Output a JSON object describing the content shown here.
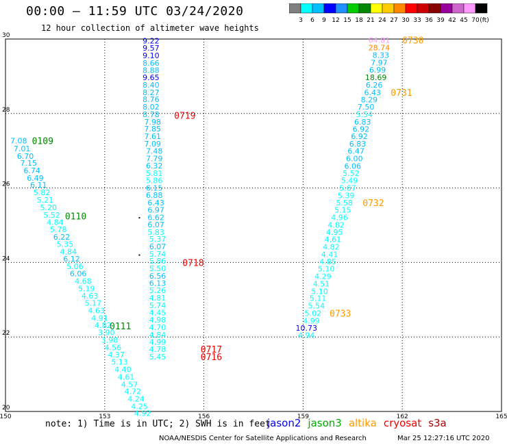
{
  "header": {
    "title": "00:00 – 11:59 UTC 03/24/2020",
    "subtitle": "12 hour collection of altimeter wave heights"
  },
  "colorbar": {
    "colors": [
      "#808080",
      "#00ffff",
      "#00bfff",
      "#0000ff",
      "#1e90ff",
      "#00cc00",
      "#008800",
      "#ffff00",
      "#ffcc00",
      "#ff8800",
      "#ff0000",
      "#cc0000",
      "#880000",
      "#990099",
      "#cc66cc",
      "#ff99ff",
      "#000000"
    ],
    "labels": [
      "3",
      "6",
      "9",
      "12",
      "15",
      "18",
      "21",
      "24",
      "27",
      "30",
      "33",
      "36",
      "39",
      "42",
      "45",
      "70",
      "(ft)"
    ]
  },
  "footer": {
    "note": "note: 1) Time is in UTC; 2) SWH is in feet",
    "satellites": [
      {
        "name": "jason2",
        "color": "#0000ee"
      },
      {
        "name": "jason3",
        "color": "#00aa00"
      },
      {
        "name": "altika",
        "color": "#ff9900"
      },
      {
        "name": "cryosat",
        "color": "#ee0000"
      },
      {
        "name": "s3a",
        "color": "#aa0000"
      }
    ],
    "credit": "NOAA/NESDIS Center for Satellite Applications and Research",
    "timestamp": "Mar 25 12:27:16 UTC 2020"
  },
  "chart_data": {
    "type": "scatter",
    "xlim": [
      150,
      165
    ],
    "ylim": [
      20,
      30
    ],
    "xticks": [
      "150",
      "153",
      "156",
      "159",
      "162",
      "165"
    ],
    "yticks": [
      "20",
      "22",
      "24",
      "26",
      "28",
      "30"
    ],
    "grid": true,
    "tracks": [
      {
        "satellite": "jason3",
        "points": [
          {
            "lon": 150.4,
            "lat": 27.27,
            "v": "7.08",
            "c": "#00bfff"
          },
          {
            "lon": 150.5,
            "lat": 27.06,
            "v": "7.01",
            "c": "#00bfff"
          },
          {
            "lon": 150.6,
            "lat": 26.86,
            "v": "6.70",
            "c": "#00bfff"
          },
          {
            "lon": 150.7,
            "lat": 26.67,
            "v": "7.15",
            "c": "#00bfff"
          },
          {
            "lon": 150.8,
            "lat": 26.47,
            "v": "6.74",
            "c": "#00bfff"
          },
          {
            "lon": 150.9,
            "lat": 26.27,
            "v": "6.49",
            "c": "#00bfff"
          },
          {
            "lon": 151.0,
            "lat": 26.08,
            "v": "6.11",
            "c": "#00bfff"
          },
          {
            "lon": 151.1,
            "lat": 25.88,
            "v": "5.82",
            "c": "#00ffff"
          },
          {
            "lon": 151.2,
            "lat": 25.68,
            "v": "5.21",
            "c": "#00ffff"
          },
          {
            "lon": 151.3,
            "lat": 25.48,
            "v": "5.20",
            "c": "#00ffff"
          },
          {
            "lon": 151.4,
            "lat": 25.28,
            "v": "5.52",
            "c": "#00ffff"
          },
          {
            "lon": 151.5,
            "lat": 25.08,
            "v": "4.84",
            "c": "#00ffff"
          },
          {
            "lon": 151.6,
            "lat": 24.89,
            "v": "5.78",
            "c": "#00ffff"
          },
          {
            "lon": 151.7,
            "lat": 24.69,
            "v": "6.22",
            "c": "#00bfff"
          },
          {
            "lon": 151.8,
            "lat": 24.49,
            "v": "5.35",
            "c": "#00ffff"
          },
          {
            "lon": 151.9,
            "lat": 24.29,
            "v": "4.84",
            "c": "#00ffff"
          },
          {
            "lon": 152.0,
            "lat": 24.1,
            "v": "6.12",
            "c": "#00bfff"
          },
          {
            "lon": 152.1,
            "lat": 23.9,
            "v": "5.06",
            "c": "#00ffff"
          },
          {
            "lon": 152.2,
            "lat": 23.7,
            "v": "6.06",
            "c": "#00bfff"
          },
          {
            "lon": 152.35,
            "lat": 23.5,
            "v": "4.68",
            "c": "#00ffff"
          },
          {
            "lon": 152.45,
            "lat": 23.3,
            "v": "5.19",
            "c": "#00ffff"
          },
          {
            "lon": 152.55,
            "lat": 23.11,
            "v": "4.63",
            "c": "#00ffff"
          },
          {
            "lon": 152.65,
            "lat": 22.91,
            "v": "5.17",
            "c": "#00ffff"
          },
          {
            "lon": 152.75,
            "lat": 22.71,
            "v": "4.63",
            "c": "#00ffff"
          },
          {
            "lon": 152.85,
            "lat": 22.51,
            "v": "4.91",
            "c": "#00ffff"
          },
          {
            "lon": 152.95,
            "lat": 22.32,
            "v": "4.82",
            "c": "#00ffff"
          },
          {
            "lon": 153.05,
            "lat": 22.12,
            "v": "3.90",
            "c": "#00ffff"
          },
          {
            "lon": 153.15,
            "lat": 21.92,
            "v": "3.98",
            "c": "#00ffff"
          },
          {
            "lon": 153.25,
            "lat": 21.72,
            "v": "4.56",
            "c": "#00ffff"
          },
          {
            "lon": 153.35,
            "lat": 21.53,
            "v": "4.37",
            "c": "#00ffff"
          },
          {
            "lon": 153.45,
            "lat": 21.33,
            "v": "5.13",
            "c": "#00ffff"
          },
          {
            "lon": 153.55,
            "lat": 21.13,
            "v": "4.40",
            "c": "#00ffff"
          },
          {
            "lon": 153.65,
            "lat": 20.93,
            "v": "4.61",
            "c": "#00ffff"
          },
          {
            "lon": 153.75,
            "lat": 20.73,
            "v": "4.57",
            "c": "#00ffff"
          },
          {
            "lon": 153.85,
            "lat": 20.54,
            "v": "4.72",
            "c": "#00ffff"
          },
          {
            "lon": 153.95,
            "lat": 20.34,
            "v": "4.24",
            "c": "#00ffff"
          },
          {
            "lon": 154.05,
            "lat": 20.14,
            "v": "4.25",
            "c": "#00ffff"
          },
          {
            "lon": 154.15,
            "lat": 19.95,
            "v": "4.92",
            "c": "#00ffff"
          }
        ]
      },
      {
        "satellite": "jason2",
        "points": [
          {
            "lon": 154.4,
            "lat": 29.95,
            "v": "9.22",
            "c": "#0000ff"
          },
          {
            "lon": 154.4,
            "lat": 29.76,
            "v": "9.57",
            "c": "#0000ff"
          },
          {
            "lon": 154.4,
            "lat": 29.56,
            "v": "9.10",
            "c": "#0000ff"
          },
          {
            "lon": 154.4,
            "lat": 29.36,
            "v": "8.66",
            "c": "#00bfff"
          },
          {
            "lon": 154.4,
            "lat": 29.16,
            "v": "8.88",
            "c": "#00bfff"
          },
          {
            "lon": 154.4,
            "lat": 28.97,
            "v": "9.65",
            "c": "#0000ff"
          },
          {
            "lon": 154.4,
            "lat": 28.77,
            "v": "8.40",
            "c": "#00bfff"
          },
          {
            "lon": 154.4,
            "lat": 28.57,
            "v": "8.27",
            "c": "#00bfff"
          },
          {
            "lon": 154.4,
            "lat": 28.38,
            "v": "8.76",
            "c": "#00bfff"
          },
          {
            "lon": 154.4,
            "lat": 28.18,
            "v": "8.02",
            "c": "#00bfff"
          },
          {
            "lon": 154.4,
            "lat": 27.98,
            "v": "8.78",
            "c": "#00bfff"
          },
          {
            "lon": 154.45,
            "lat": 27.78,
            "v": "7.98",
            "c": "#00bfff"
          },
          {
            "lon": 154.45,
            "lat": 27.59,
            "v": "7.85",
            "c": "#00bfff"
          },
          {
            "lon": 154.45,
            "lat": 27.39,
            "v": "7.61",
            "c": "#00bfff"
          },
          {
            "lon": 154.45,
            "lat": 27.19,
            "v": "7.09",
            "c": "#00bfff"
          },
          {
            "lon": 154.5,
            "lat": 26.99,
            "v": "7.48",
            "c": "#00bfff"
          },
          {
            "lon": 154.5,
            "lat": 26.79,
            "v": "7.79",
            "c": "#00bfff"
          },
          {
            "lon": 154.5,
            "lat": 26.6,
            "v": "6.32",
            "c": "#00bfff"
          },
          {
            "lon": 154.5,
            "lat": 26.4,
            "v": "5.81",
            "c": "#00ffff"
          },
          {
            "lon": 154.5,
            "lat": 26.2,
            "v": "5.86",
            "c": "#00ffff"
          },
          {
            "lon": 154.5,
            "lat": 26.0,
            "v": "6.15",
            "c": "#00bfff"
          },
          {
            "lon": 154.5,
            "lat": 25.81,
            "v": "6.88",
            "c": "#00bfff"
          },
          {
            "lon": 154.55,
            "lat": 25.61,
            "v": "6.43",
            "c": "#00bfff"
          },
          {
            "lon": 154.55,
            "lat": 25.41,
            "v": "6.97",
            "c": "#00bfff"
          },
          {
            "lon": 154.55,
            "lat": 25.21,
            "v": "6.62",
            "c": "#00bfff"
          },
          {
            "lon": 154.55,
            "lat": 25.02,
            "v": "6.07",
            "c": "#00bfff"
          },
          {
            "lon": 154.55,
            "lat": 24.82,
            "v": "5.83",
            "c": "#00ffff"
          },
          {
            "lon": 154.6,
            "lat": 24.63,
            "v": "5.37",
            "c": "#00ffff"
          },
          {
            "lon": 154.6,
            "lat": 24.43,
            "v": "6.07",
            "c": "#00bfff"
          },
          {
            "lon": 154.6,
            "lat": 24.23,
            "v": "5.74",
            "c": "#00ffff"
          },
          {
            "lon": 154.6,
            "lat": 24.04,
            "v": "5.86",
            "c": "#00ffff"
          },
          {
            "lon": 154.6,
            "lat": 23.84,
            "v": "5.50",
            "c": "#00ffff"
          },
          {
            "lon": 154.6,
            "lat": 23.64,
            "v": "6.56",
            "c": "#00bfff"
          },
          {
            "lon": 154.6,
            "lat": 23.45,
            "v": "6.13",
            "c": "#00bfff"
          },
          {
            "lon": 154.6,
            "lat": 23.25,
            "v": "5.26",
            "c": "#00ffff"
          },
          {
            "lon": 154.6,
            "lat": 23.05,
            "v": "4.81",
            "c": "#00ffff"
          },
          {
            "lon": 154.6,
            "lat": 22.85,
            "v": "5.74",
            "c": "#00ffff"
          },
          {
            "lon": 154.6,
            "lat": 22.66,
            "v": "4.45",
            "c": "#00ffff"
          },
          {
            "lon": 154.6,
            "lat": 22.46,
            "v": "4.98",
            "c": "#00ffff"
          },
          {
            "lon": 154.6,
            "lat": 22.26,
            "v": "4.70",
            "c": "#00ffff"
          },
          {
            "lon": 154.6,
            "lat": 22.06,
            "v": "4.84",
            "c": "#00ffff"
          },
          {
            "lon": 154.6,
            "lat": 21.87,
            "v": "4.99",
            "c": "#00ffff"
          },
          {
            "lon": 154.6,
            "lat": 21.67,
            "v": "4.78",
            "c": "#00ffff"
          },
          {
            "lon": 154.6,
            "lat": 21.47,
            "v": "5.45",
            "c": "#00ffff"
          }
        ]
      },
      {
        "satellite": "altika",
        "points": [
          {
            "lon": 161.3,
            "lat": 29.97,
            "v": "64.81",
            "c": "#ff99ff"
          },
          {
            "lon": 161.3,
            "lat": 29.77,
            "v": "28.74",
            "c": "#ff8800"
          },
          {
            "lon": 161.35,
            "lat": 29.57,
            "v": "8.33",
            "c": "#00bfff"
          },
          {
            "lon": 161.3,
            "lat": 29.37,
            "v": "7.97",
            "c": "#00bfff"
          },
          {
            "lon": 161.25,
            "lat": 29.17,
            "v": "6.99",
            "c": "#00bfff"
          },
          {
            "lon": 161.2,
            "lat": 28.97,
            "v": "18.69",
            "c": "#008800"
          },
          {
            "lon": 161.15,
            "lat": 28.77,
            "v": "6.26",
            "c": "#00bfff"
          },
          {
            "lon": 161.1,
            "lat": 28.57,
            "v": "6.43",
            "c": "#00bfff"
          },
          {
            "lon": 161.0,
            "lat": 28.37,
            "v": "8.29",
            "c": "#00bfff"
          },
          {
            "lon": 160.9,
            "lat": 28.18,
            "v": "7.50",
            "c": "#00bfff"
          },
          {
            "lon": 160.85,
            "lat": 27.98,
            "v": "5.54",
            "c": "#00ffff"
          },
          {
            "lon": 160.8,
            "lat": 27.78,
            "v": "6.83",
            "c": "#00bfff"
          },
          {
            "lon": 160.75,
            "lat": 27.58,
            "v": "6.92",
            "c": "#00bfff"
          },
          {
            "lon": 160.7,
            "lat": 27.39,
            "v": "6.92",
            "c": "#00bfff"
          },
          {
            "lon": 160.65,
            "lat": 27.19,
            "v": "6.83",
            "c": "#00bfff"
          },
          {
            "lon": 160.6,
            "lat": 26.99,
            "v": "6.47",
            "c": "#00bfff"
          },
          {
            "lon": 160.55,
            "lat": 26.79,
            "v": "6.00",
            "c": "#00bfff"
          },
          {
            "lon": 160.5,
            "lat": 26.59,
            "v": "6.06",
            "c": "#00bfff"
          },
          {
            "lon": 160.45,
            "lat": 26.4,
            "v": "5.52",
            "c": "#00ffff"
          },
          {
            "lon": 160.4,
            "lat": 26.2,
            "v": "5.49",
            "c": "#00ffff"
          },
          {
            "lon": 160.35,
            "lat": 26.0,
            "v": "5.67",
            "c": "#00ffff"
          },
          {
            "lon": 160.3,
            "lat": 25.8,
            "v": "5.39",
            "c": "#00ffff"
          },
          {
            "lon": 160.25,
            "lat": 25.61,
            "v": "5.58",
            "c": "#00ffff"
          },
          {
            "lon": 160.2,
            "lat": 25.41,
            "v": "5.15",
            "c": "#00ffff"
          },
          {
            "lon": 160.1,
            "lat": 25.21,
            "v": "4.96",
            "c": "#00ffff"
          },
          {
            "lon": 160.0,
            "lat": 25.01,
            "v": "4.82",
            "c": "#00ffff"
          },
          {
            "lon": 159.95,
            "lat": 24.82,
            "v": "4.95",
            "c": "#00ffff"
          },
          {
            "lon": 159.9,
            "lat": 24.62,
            "v": "4.61",
            "c": "#00ffff"
          },
          {
            "lon": 159.85,
            "lat": 24.42,
            "v": "4.82",
            "c": "#00ffff"
          },
          {
            "lon": 159.8,
            "lat": 24.22,
            "v": "4.41",
            "c": "#00ffff"
          },
          {
            "lon": 159.75,
            "lat": 24.03,
            "v": "4.85",
            "c": "#00ffff"
          },
          {
            "lon": 159.7,
            "lat": 23.83,
            "v": "5.10",
            "c": "#00ffff"
          },
          {
            "lon": 159.6,
            "lat": 23.63,
            "v": "4.29",
            "c": "#00ffff"
          },
          {
            "lon": 159.55,
            "lat": 23.43,
            "v": "4.51",
            "c": "#00ffff"
          },
          {
            "lon": 159.5,
            "lat": 23.23,
            "v": "5.10",
            "c": "#00ffff"
          },
          {
            "lon": 159.45,
            "lat": 23.04,
            "v": "5.11",
            "c": "#00ffff"
          },
          {
            "lon": 159.4,
            "lat": 22.84,
            "v": "5.54",
            "c": "#00ffff"
          },
          {
            "lon": 159.3,
            "lat": 22.64,
            "v": "5.02",
            "c": "#00ffff"
          },
          {
            "lon": 159.25,
            "lat": 22.44,
            "v": "4.99",
            "c": "#00ffff"
          },
          {
            "lon": 159.1,
            "lat": 22.24,
            "v": "10.73",
            "c": "#0000ff"
          },
          {
            "lon": 159.1,
            "lat": 22.05,
            "v": "4.94",
            "c": "#00ffff"
          }
        ]
      }
    ],
    "time_labels": [
      {
        "lon": 150.8,
        "lat": 27.27,
        "text": "0109",
        "color": "#008800"
      },
      {
        "lon": 151.8,
        "lat": 25.25,
        "text": "0110",
        "color": "#008800"
      },
      {
        "lon": 153.15,
        "lat": 22.3,
        "text": "0111",
        "color": "#008800"
      },
      {
        "lon": 155.1,
        "lat": 27.95,
        "text": "0719",
        "color": "#ee0000"
      },
      {
        "lon": 155.35,
        "lat": 24.0,
        "text": "0718",
        "color": "#ee0000"
      },
      {
        "lon": 155.9,
        "lat": 21.67,
        "text": "0717",
        "color": "#ee0000"
      },
      {
        "lon": 155.9,
        "lat": 21.47,
        "text": "0716",
        "color": "#ee0000"
      },
      {
        "lon": 162.0,
        "lat": 29.97,
        "text": "0730",
        "color": "#ff9900"
      },
      {
        "lon": 161.65,
        "lat": 28.57,
        "text": "0731",
        "color": "#ff9900"
      },
      {
        "lon": 160.8,
        "lat": 25.61,
        "text": "0732",
        "color": "#ff9900"
      },
      {
        "lon": 159.8,
        "lat": 22.64,
        "text": "0733",
        "color": "#ff9900"
      }
    ],
    "markers": [
      {
        "lon": 154.05,
        "lat": 25.2
      },
      {
        "lon": 154.05,
        "lat": 24.2
      }
    ]
  }
}
